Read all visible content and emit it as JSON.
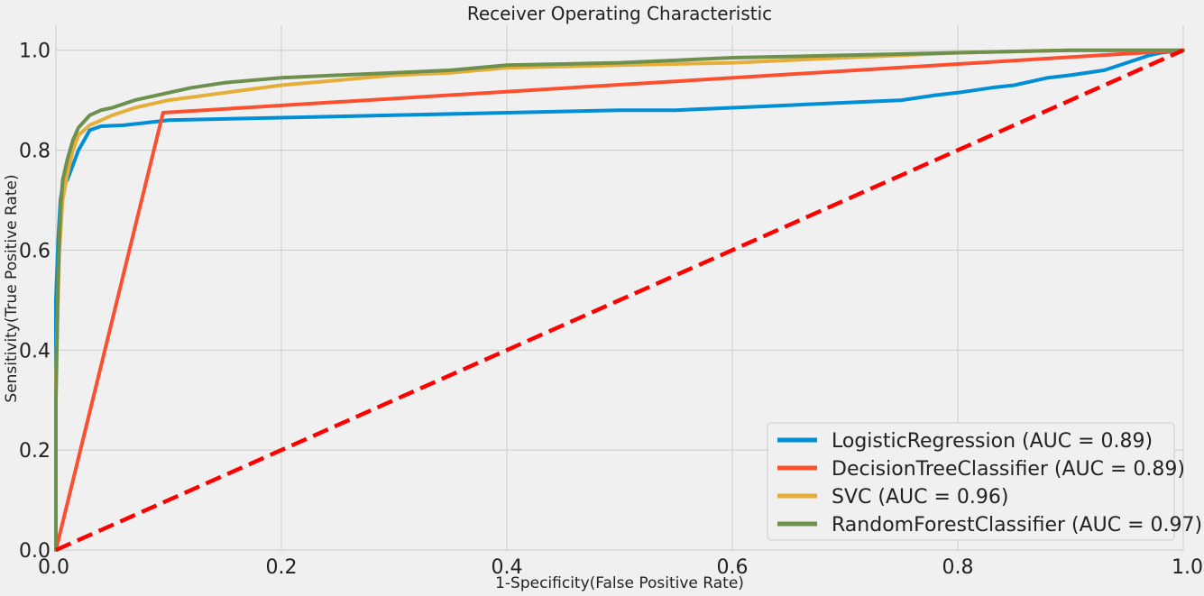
{
  "chart_data": {
    "type": "line",
    "title": "Receiver Operating Characteristic",
    "xlabel": "1-Specificity(False Positive Rate)",
    "ylabel": "Sensitivity(True Positive Rate)",
    "xlim": [
      0,
      1
    ],
    "ylim": [
      0,
      1.05
    ],
    "x_ticks": [
      "0.0",
      "0.2",
      "0.4",
      "0.6",
      "0.8",
      "1.0"
    ],
    "y_ticks": [
      "0.0",
      "0.2",
      "0.4",
      "0.6",
      "0.8",
      "1.0"
    ],
    "grid": true,
    "legend_position": "bottom-right",
    "series": [
      {
        "name": "LogisticRegression (AUC = 0.89)",
        "color": "#008fd5",
        "points": [
          [
            0,
            0
          ],
          [
            0,
            0.5
          ],
          [
            0.002,
            0.62
          ],
          [
            0.004,
            0.7
          ],
          [
            0.006,
            0.73
          ],
          [
            0.01,
            0.74
          ],
          [
            0.015,
            0.77
          ],
          [
            0.02,
            0.8
          ],
          [
            0.025,
            0.82
          ],
          [
            0.03,
            0.84
          ],
          [
            0.04,
            0.848
          ],
          [
            0.06,
            0.85
          ],
          [
            0.08,
            0.855
          ],
          [
            0.1,
            0.86
          ],
          [
            0.2,
            0.865
          ],
          [
            0.3,
            0.87
          ],
          [
            0.4,
            0.875
          ],
          [
            0.5,
            0.88
          ],
          [
            0.55,
            0.88
          ],
          [
            0.6,
            0.885
          ],
          [
            0.65,
            0.89
          ],
          [
            0.7,
            0.895
          ],
          [
            0.75,
            0.9
          ],
          [
            0.78,
            0.91
          ],
          [
            0.8,
            0.915
          ],
          [
            0.83,
            0.925
          ],
          [
            0.85,
            0.93
          ],
          [
            0.88,
            0.945
          ],
          [
            0.9,
            0.95
          ],
          [
            0.93,
            0.96
          ],
          [
            0.95,
            0.975
          ],
          [
            0.97,
            0.99
          ],
          [
            0.98,
            0.995
          ],
          [
            1,
            1
          ]
        ]
      },
      {
        "name": "DecisionTreeClassifier (AUC = 0.89)",
        "color": "#fc4f30",
        "points": [
          [
            0,
            0
          ],
          [
            0.095,
            0.875
          ],
          [
            1,
            1
          ]
        ]
      },
      {
        "name": "SVC (AUC = 0.96)",
        "color": "#e5ae38",
        "points": [
          [
            0,
            0
          ],
          [
            0,
            0.35
          ],
          [
            0.003,
            0.6
          ],
          [
            0.006,
            0.7
          ],
          [
            0.01,
            0.75
          ],
          [
            0.015,
            0.8
          ],
          [
            0.02,
            0.83
          ],
          [
            0.03,
            0.85
          ],
          [
            0.05,
            0.87
          ],
          [
            0.07,
            0.885
          ],
          [
            0.1,
            0.9
          ],
          [
            0.15,
            0.915
          ],
          [
            0.2,
            0.93
          ],
          [
            0.25,
            0.94
          ],
          [
            0.3,
            0.95
          ],
          [
            0.35,
            0.955
          ],
          [
            0.4,
            0.965
          ],
          [
            0.5,
            0.97
          ],
          [
            0.6,
            0.975
          ],
          [
            0.7,
            0.985
          ],
          [
            0.8,
            0.995
          ],
          [
            0.9,
            1
          ],
          [
            1,
            1
          ]
        ]
      },
      {
        "name": "RandomForestClassifier (AUC = 0.97)",
        "color": "#6d904f",
        "points": [
          [
            0,
            0
          ],
          [
            0,
            0.3
          ],
          [
            0.002,
            0.55
          ],
          [
            0.004,
            0.68
          ],
          [
            0.006,
            0.74
          ],
          [
            0.01,
            0.78
          ],
          [
            0.015,
            0.82
          ],
          [
            0.02,
            0.845
          ],
          [
            0.03,
            0.87
          ],
          [
            0.04,
            0.88
          ],
          [
            0.05,
            0.885
          ],
          [
            0.07,
            0.9
          ],
          [
            0.1,
            0.915
          ],
          [
            0.12,
            0.925
          ],
          [
            0.15,
            0.935
          ],
          [
            0.2,
            0.945
          ],
          [
            0.25,
            0.95
          ],
          [
            0.3,
            0.955
          ],
          [
            0.35,
            0.96
          ],
          [
            0.4,
            0.97
          ],
          [
            0.5,
            0.975
          ],
          [
            0.6,
            0.985
          ],
          [
            0.7,
            0.99
          ],
          [
            0.8,
            0.995
          ],
          [
            0.9,
            1
          ],
          [
            1,
            1
          ]
        ]
      }
    ],
    "reference_line": {
      "color": "#ff0000",
      "style": "dashed",
      "points": [
        [
          0,
          0
        ],
        [
          1,
          1
        ]
      ]
    }
  }
}
